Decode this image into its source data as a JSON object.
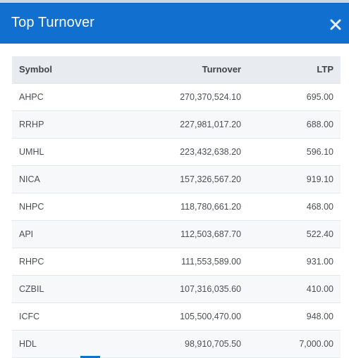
{
  "modal": {
    "title": "Top Turnover",
    "close_glyph": "×"
  },
  "table": {
    "columns": [
      "Symbol",
      "Turnover",
      "LTP"
    ],
    "rows": [
      {
        "symbol": "AHPC",
        "turnover": "270,370,524.10",
        "ltp": "695.00"
      },
      {
        "symbol": "RRHP",
        "turnover": "227,981,017.20",
        "ltp": "688.00"
      },
      {
        "symbol": "UMHL",
        "turnover": "223,432,638.20",
        "ltp": "596.10"
      },
      {
        "symbol": "NICA",
        "turnover": "157,326,567.20",
        "ltp": "919.10"
      },
      {
        "symbol": "NHPC",
        "turnover": "118,780,661.20",
        "ltp": "468.00"
      },
      {
        "symbol": "API",
        "turnover": "112,503,687.70",
        "ltp": "522.40"
      },
      {
        "symbol": "RHPC",
        "turnover": "111,553,589.00",
        "ltp": "931.00"
      },
      {
        "symbol": "CZBIL",
        "turnover": "107,316,035.60",
        "ltp": "410.00"
      },
      {
        "symbol": "ICFC",
        "turnover": "105,500,470.00",
        "ltp": "948.00"
      },
      {
        "symbol": "HDL",
        "turnover": "98,910,705.50",
        "ltp": "7,000.00"
      }
    ]
  },
  "colors": {
    "header_bg": "#1170cf",
    "table_header_bg": "#e8ebef",
    "row_alt_bg": "#f7f8fa"
  },
  "icons": {
    "close": "close-icon"
  }
}
